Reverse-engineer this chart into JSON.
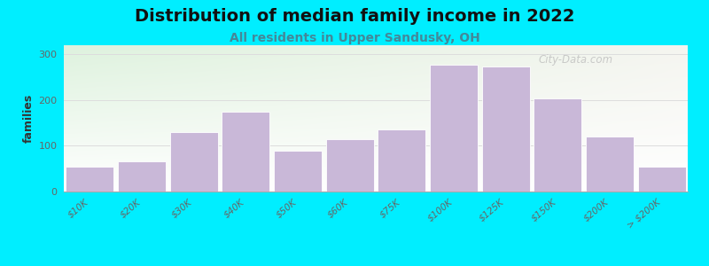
{
  "title": "Distribution of median family income in 2022",
  "subtitle": "All residents in Upper Sandusky, OH",
  "ylabel": "families",
  "categories": [
    "$10K",
    "$20K",
    "$30K",
    "$40K",
    "$50K",
    "$60K",
    "$75K",
    "$100K",
    "$125K",
    "$150K",
    "$200K",
    "> $200K"
  ],
  "values": [
    55,
    65,
    130,
    175,
    90,
    115,
    135,
    278,
    273,
    203,
    120,
    55
  ],
  "bar_color": "#c9b8d8",
  "bar_edge_color": "#ffffff",
  "background_outer": "#00eeff",
  "bg_top_color": "#ddeedd",
  "bg_bottom_color": "#f8fff8",
  "bg_right_color": "#f5f5f0",
  "ylim": [
    0,
    320
  ],
  "yticks": [
    0,
    100,
    200,
    300
  ],
  "title_fontsize": 14,
  "subtitle_fontsize": 10,
  "ylabel_fontsize": 9,
  "tick_label_fontsize": 7.5,
  "watermark_text": "City-Data.com",
  "grid_color": "#dddddd",
  "subtitle_color": "#448899",
  "title_color": "#111111",
  "ylabel_color": "#333333",
  "tick_color": "#666666"
}
